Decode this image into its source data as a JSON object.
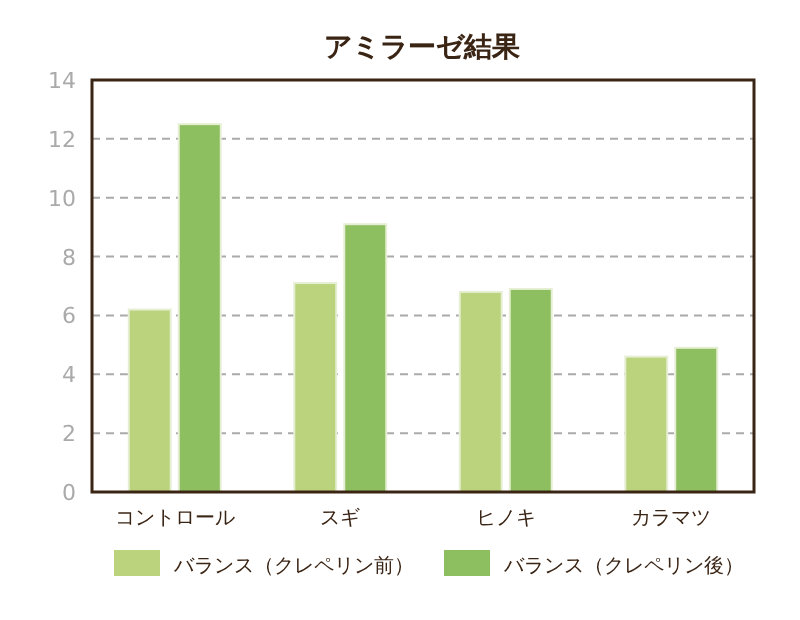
{
  "chart_data": {
    "type": "bar",
    "title": "アミラーゼ結果",
    "categories": [
      "コントロール",
      "スギ",
      "ヒノキ",
      "カラマツ"
    ],
    "series": [
      {
        "name": "バランス（クレペリン前）",
        "color": "#bbd37c",
        "values": [
          6.2,
          7.1,
          6.8,
          4.6
        ]
      },
      {
        "name": "バランス（クレペリン後）",
        "color": "#8dbe5f",
        "values": [
          12.5,
          9.1,
          6.9,
          4.9
        ]
      }
    ],
    "ylim": [
      0,
      14
    ],
    "yticks": [
      0,
      2,
      4,
      6,
      8,
      10,
      12,
      14
    ],
    "grid": "y",
    "legend": "bottom"
  }
}
